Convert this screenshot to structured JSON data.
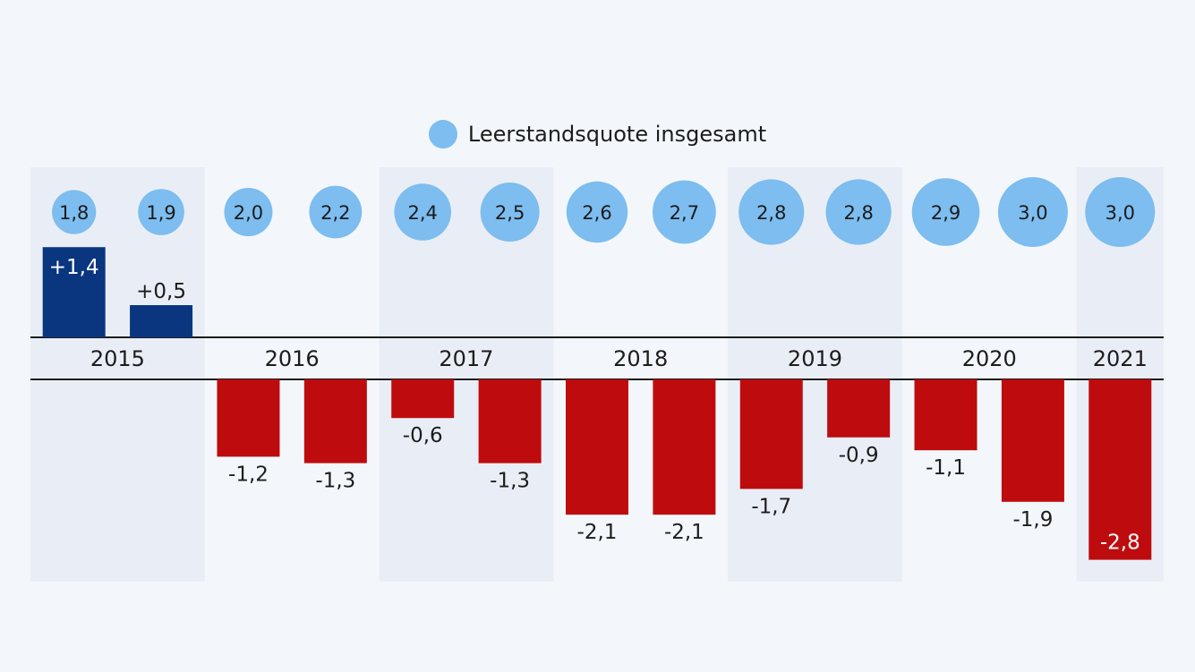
{
  "legend": {
    "label": "Leerstandsquote insgesamt"
  },
  "colors": {
    "background": "#f3f7fb",
    "band": "#e9eef6",
    "positive_bar": "#0a3680",
    "negative_bar": "#be0c0e",
    "bubble": "#7dbdef",
    "axis_line": "#1c1c1c",
    "text": "#1c1c1c"
  },
  "chart_data": {
    "type": "bar",
    "years": [
      "2015",
      "2016",
      "2017",
      "2018",
      "2019",
      "2020",
      "2021"
    ],
    "categories": [
      "2015-1",
      "2015-2",
      "2016-1",
      "2016-2",
      "2017-1",
      "2017-2",
      "2018-1",
      "2018-2",
      "2019-1",
      "2019-2",
      "2020-1",
      "2020-2",
      "2021-1"
    ],
    "series": [
      {
        "values": [
          1.4,
          0.5,
          -1.2,
          -1.3,
          -0.6,
          -1.3,
          -2.1,
          -2.1,
          -1.7,
          -0.9,
          -1.1,
          -1.9,
          -2.8
        ],
        "labels": [
          "+1,4",
          "+0,5",
          "-1,2",
          "-1,3",
          "-0,6",
          "-1,3",
          "-2,1",
          "-2,1",
          "-1,7",
          "-0,9",
          "-1,1",
          "-1,9",
          "-2,8"
        ]
      },
      {
        "name": "Leerstandsquote insgesamt",
        "values": [
          1.8,
          1.9,
          2.0,
          2.2,
          2.4,
          2.5,
          2.6,
          2.7,
          2.8,
          2.8,
          2.9,
          3.0,
          3.0
        ],
        "labels": [
          "1,8",
          "1,9",
          "2,0",
          "2,2",
          "2,4",
          "2,5",
          "2,6",
          "2,7",
          "2,8",
          "2,8",
          "2,9",
          "3,0",
          "3,0"
        ]
      }
    ],
    "legend_position": "top-center",
    "grid": false
  }
}
